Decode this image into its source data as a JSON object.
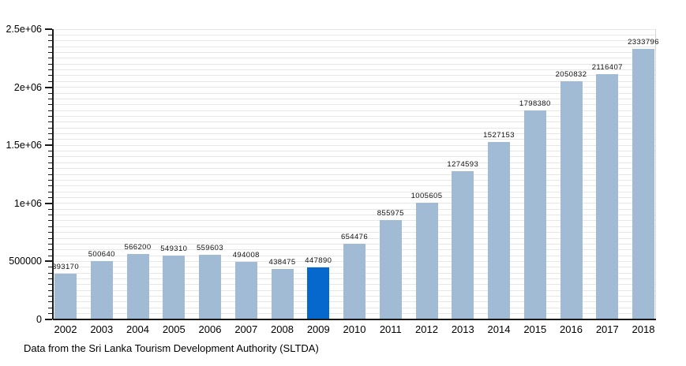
{
  "chart_data": {
    "type": "bar",
    "title": "",
    "xlabel": "",
    "ylabel": "",
    "categories": [
      "2002",
      "2003",
      "2004",
      "2005",
      "2006",
      "2007",
      "2008",
      "2009",
      "2010",
      "2011",
      "2012",
      "2013",
      "2014",
      "2015",
      "2016",
      "2017",
      "2018"
    ],
    "values": [
      393170,
      500640,
      566200,
      549310,
      559603,
      494008,
      438475,
      447890,
      654476,
      855975,
      1005605,
      1274593,
      1527153,
      1798380,
      2050832,
      2116407,
      2333796
    ],
    "value_labels_shown": true,
    "highlight_category": "2009",
    "highlight_index": 7,
    "ylim": [
      0,
      2500000
    ],
    "ytick_values": [
      0,
      500000,
      1000000,
      1500000,
      2000000,
      2500000
    ],
    "ytick_labels": [
      "0",
      "500000",
      "1e+06",
      "1.5e+06",
      "2e+06",
      "2.5e+06"
    ],
    "minor_tick_step": 50000,
    "grid": "horizontal gridlines every 50000, light gray",
    "legend_position": "none",
    "colors": {
      "bar": "#a2bbd4",
      "highlight_bar": "#0667cd",
      "gridline": "#e7e7e7",
      "axis": "#1a1a1a",
      "right_border": "#d6d6d6",
      "text": "#000000"
    }
  },
  "caption": "Data from the Sri Lanka Tourism Development Authority (SLTDA)"
}
